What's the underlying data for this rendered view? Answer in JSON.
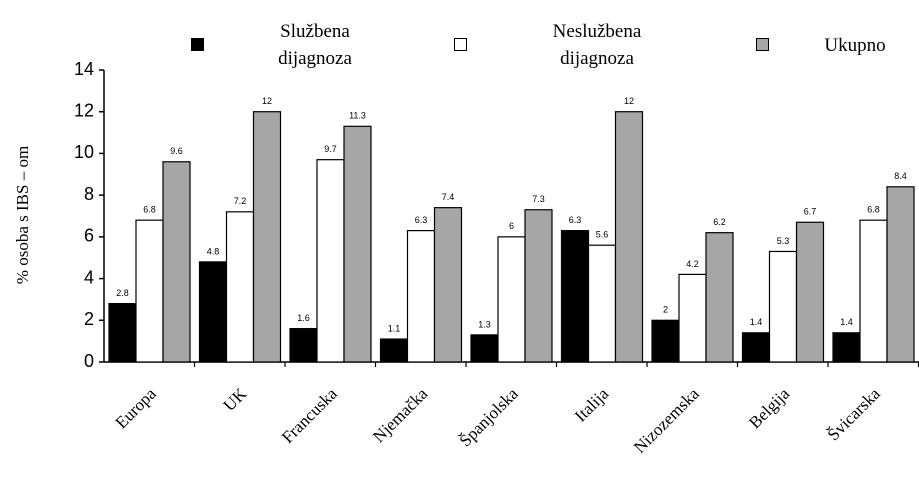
{
  "chart_data": {
    "type": "bar",
    "ylabel": "% osoba s IBS – om",
    "categories": [
      "Europa",
      "UK",
      "Francuska",
      "Njemačka",
      "Španjolska",
      "Italija",
      "Nizozemska",
      "Belgija",
      "Švicarska"
    ],
    "series": [
      {
        "name": "Službena dijagnoza",
        "color": "#000000",
        "values": [
          2.8,
          4.8,
          1.6,
          1.1,
          1.3,
          6.3,
          2,
          1.4,
          1.4
        ]
      },
      {
        "name": "Neslužbena dijagnoza",
        "color": "#ffffff",
        "values": [
          6.8,
          7.2,
          9.7,
          6.3,
          6,
          5.6,
          4.2,
          5.3,
          6.8
        ]
      },
      {
        "name": "Ukupno",
        "color": "#a6a6a6",
        "values": [
          9.6,
          12,
          11.3,
          7.4,
          7.3,
          12,
          6.2,
          6.7,
          8.4
        ]
      }
    ],
    "ylim": [
      0,
      14
    ],
    "yticks": [
      0,
      2,
      4,
      6,
      8,
      10,
      12,
      14
    ],
    "grid": false
  }
}
